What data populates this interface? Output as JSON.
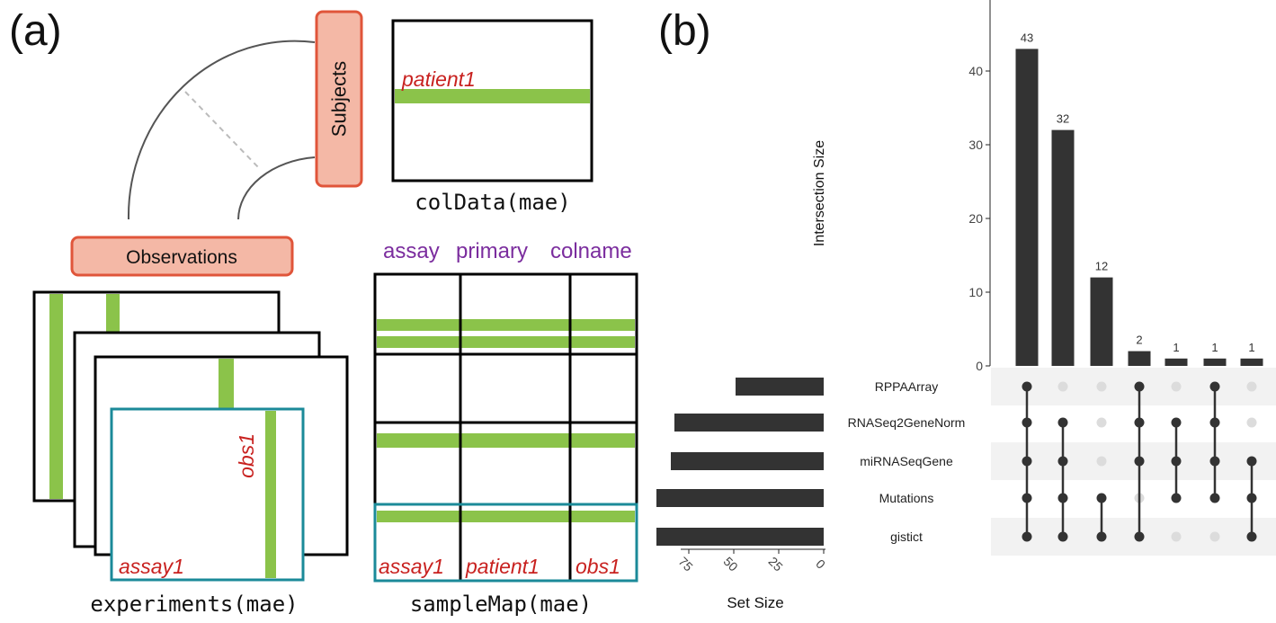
{
  "panel_a": {
    "panel_label": "(a)",
    "subjects_label": "Subjects",
    "observations_label": "Observations",
    "coldata": {
      "row_label": "patient1",
      "caption": "colData(mae)"
    },
    "experiments": {
      "assay_label": "assay1",
      "obs_label": "obs1",
      "caption": "experiments(mae)"
    },
    "samplemap": {
      "headers": [
        "assay",
        "primary",
        "colname"
      ],
      "cells": [
        "assay1",
        "patient1",
        "obs1"
      ],
      "caption": "sampleMap(mae)"
    },
    "colors": {
      "green": "#8bc34a",
      "teal": "#1b8a99",
      "red": "#c8211f",
      "purple": "#7b2d9e",
      "box_fill": "#f4b8a6",
      "box_stroke": "#e0553a"
    }
  },
  "panel_b": {
    "panel_label": "(b)",
    "chart_data": {
      "type": "bar",
      "title": "",
      "ylabel": "Intersection Size",
      "ylim": [
        0,
        45
      ],
      "yticks": [
        0,
        10,
        20,
        30,
        40
      ],
      "values": [
        43,
        32,
        12,
        2,
        1,
        1,
        1
      ],
      "sets": [
        "RPPAArray",
        "RNASeq2GeneNorm",
        "miRNASeqGene",
        "Mutations",
        "gistict"
      ],
      "intersections": [
        [
          0,
          1,
          2,
          3,
          4
        ],
        [
          1,
          2,
          3,
          4
        ],
        [
          3,
          4
        ],
        [
          0,
          1,
          2,
          4
        ],
        [
          1,
          2,
          3
        ],
        [
          0,
          1,
          2,
          3
        ],
        [
          2,
          3,
          4
        ]
      ],
      "set_size": {
        "xlabel": "Set Size",
        "ticks": [
          75,
          50,
          25,
          0
        ],
        "values": [
          49,
          83,
          85,
          93,
          93
        ]
      }
    }
  }
}
